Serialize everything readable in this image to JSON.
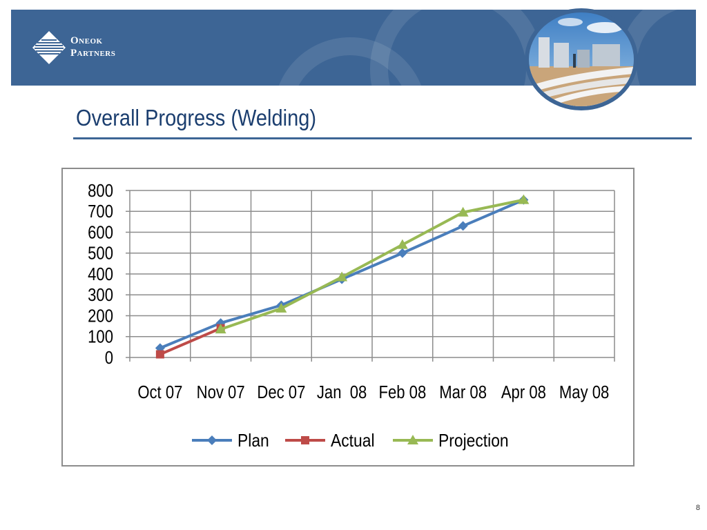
{
  "header": {
    "logo_line1": "Oneok",
    "logo_line2": "Partners"
  },
  "slide": {
    "title": "Overall Progress (Welding)",
    "page_number": "8"
  },
  "chart_data": {
    "type": "line",
    "title": "",
    "xlabel": "",
    "ylabel": "",
    "categories": [
      "Oct 07",
      "Nov 07",
      "Dec 07",
      "Jan  08",
      "Feb 08",
      "Mar 08",
      "Apr 08",
      "May 08"
    ],
    "ylim": [
      0,
      800
    ],
    "yticks": [
      0,
      100,
      200,
      300,
      400,
      500,
      600,
      700,
      800
    ],
    "grid": true,
    "legend_position": "bottom",
    "series": [
      {
        "name": "Plan",
        "color": "#4a7ebb",
        "marker": "diamond",
        "values": [
          45,
          165,
          250,
          375,
          500,
          630,
          755,
          null
        ]
      },
      {
        "name": "Actual",
        "color": "#be4b48",
        "marker": "square",
        "values": [
          15,
          140,
          null,
          null,
          null,
          null,
          null,
          null
        ]
      },
      {
        "name": "Projection",
        "color": "#98b954",
        "marker": "triangle",
        "values": [
          null,
          135,
          235,
          385,
          540,
          695,
          755,
          null
        ]
      }
    ]
  }
}
